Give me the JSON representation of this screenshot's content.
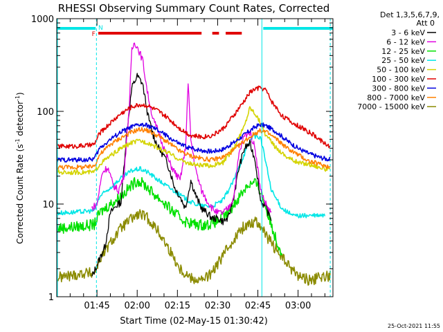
{
  "chart_data": {
    "type": "line",
    "title": "RHESSI Observing Summary Count Rates, Corrected",
    "xlabel": "Start Time (02-May-15 01:30:42)",
    "ylabel_main": "Corrected Count Rate (s",
    "ylabel_sup1": "-1",
    "ylabel_mid": " detector",
    "ylabel_sup2": "-1",
    "ylabel_end": ")",
    "yscale": "log",
    "ylim": [
      1,
      1000
    ],
    "xlim_min": [
      0,
      103
    ],
    "x_ticks": [
      {
        "label": "01:45",
        "min": 15
      },
      {
        "label": "02:00",
        "min": 30
      },
      {
        "label": "02:15",
        "min": 45
      },
      {
        "label": "02:30",
        "min": 60
      },
      {
        "label": "02:45",
        "min": 75
      },
      {
        "label": "03:00",
        "min": 90
      }
    ],
    "y_ticks": [
      {
        "label": "1",
        "v": 1
      },
      {
        "label": "10",
        "v": 10
      },
      {
        "label": "100",
        "v": 100
      },
      {
        "label": "1000",
        "v": 1000
      }
    ],
    "legend_header": [
      "Det 1,3,5,6,7,9,",
      "Att 0"
    ],
    "timestamp": "25-Oct-2021 11:55",
    "flags": {
      "F_label": "F",
      "N_label": "N",
      "night_color": "#00e6e6",
      "flare_color": "#e00000",
      "night_segments": [
        [
          0,
          14.5
        ],
        [
          77,
          103
        ]
      ],
      "flare_segments": [
        [
          15.5,
          54
        ],
        [
          58,
          60.5
        ],
        [
          63,
          69
        ]
      ],
      "vlines_dashed": [
        14.8,
        102
      ],
      "vlines_solid": [
        76.5
      ]
    },
    "series": [
      {
        "name": "3 - 6 keV",
        "color": "#000000",
        "points": [
          [
            13,
            1.6
          ],
          [
            15,
            2.2
          ],
          [
            18,
            3.5
          ],
          [
            20,
            8
          ],
          [
            22,
            9.5
          ],
          [
            24,
            10.5
          ],
          [
            26,
            55
          ],
          [
            28,
            180
          ],
          [
            30,
            240
          ],
          [
            32,
            200
          ],
          [
            34,
            90
          ],
          [
            36,
            55
          ],
          [
            38,
            40
          ],
          [
            40,
            33
          ],
          [
            42,
            24
          ],
          [
            44,
            15
          ],
          [
            46,
            12
          ],
          [
            48,
            9
          ],
          [
            50,
            18
          ],
          [
            52,
            12
          ],
          [
            54,
            9
          ],
          [
            56,
            8
          ],
          [
            58,
            7
          ],
          [
            60,
            7
          ],
          [
            62,
            6.5
          ],
          [
            64,
            7
          ],
          [
            66,
            12
          ],
          [
            68,
            25
          ],
          [
            70,
            40
          ],
          [
            72,
            45
          ],
          [
            74,
            30
          ],
          [
            76,
            11
          ],
          [
            78,
            9
          ],
          [
            80,
            7
          ]
        ]
      },
      {
        "name": "6 - 12 keV",
        "color": "#e000e0",
        "points": [
          [
            13,
            9
          ],
          [
            15,
            10
          ],
          [
            17,
            22
          ],
          [
            19,
            25
          ],
          [
            21,
            16
          ],
          [
            23,
            14
          ],
          [
            25,
            20
          ],
          [
            27,
            110
          ],
          [
            28,
            450
          ],
          [
            29,
            560
          ],
          [
            30,
            500
          ],
          [
            32,
            360
          ],
          [
            34,
            150
          ],
          [
            36,
            80
          ],
          [
            38,
            60
          ],
          [
            40,
            40
          ],
          [
            42,
            28
          ],
          [
            44,
            22
          ],
          [
            46,
            18
          ],
          [
            48,
            40
          ],
          [
            49,
            200
          ],
          [
            50,
            50
          ],
          [
            52,
            22
          ],
          [
            54,
            14
          ],
          [
            56,
            11
          ],
          [
            58,
            9
          ],
          [
            60,
            8
          ],
          [
            62,
            8
          ],
          [
            64,
            9
          ],
          [
            66,
            12
          ],
          [
            68,
            35
          ],
          [
            70,
            55
          ],
          [
            72,
            60
          ],
          [
            74,
            40
          ],
          [
            76,
            14
          ],
          [
            78,
            10
          ],
          [
            80,
            8
          ]
        ]
      },
      {
        "name": "12 - 25 keV",
        "color": "#00e000",
        "points": [
          [
            0,
            5.5
          ],
          [
            5,
            5.6
          ],
          [
            10,
            5.8
          ],
          [
            14,
            6
          ],
          [
            16,
            8
          ],
          [
            19,
            9.5
          ],
          [
            22,
            11
          ],
          [
            25,
            13
          ],
          [
            28,
            16
          ],
          [
            30,
            18
          ],
          [
            33,
            16
          ],
          [
            36,
            13
          ],
          [
            39,
            11
          ],
          [
            42,
            9
          ],
          [
            45,
            7.5
          ],
          [
            48,
            6.5
          ],
          [
            52,
            6
          ],
          [
            56,
            6
          ],
          [
            60,
            6.5
          ],
          [
            64,
            8
          ],
          [
            68,
            12
          ],
          [
            71,
            16
          ],
          [
            74,
            17
          ],
          [
            76,
            14
          ],
          [
            78,
            9
          ],
          [
            80,
            6
          ],
          [
            82,
            4
          ],
          [
            84,
            3
          ]
        ]
      },
      {
        "name": "25 - 50 keV",
        "color": "#00e6e6",
        "points": [
          [
            0,
            8
          ],
          [
            8,
            8.2
          ],
          [
            14,
            8.5
          ],
          [
            16,
            12
          ],
          [
            20,
            15
          ],
          [
            24,
            19
          ],
          [
            28,
            23
          ],
          [
            31,
            24
          ],
          [
            34,
            22
          ],
          [
            38,
            18
          ],
          [
            42,
            15
          ],
          [
            46,
            12.5
          ],
          [
            50,
            10.5
          ],
          [
            54,
            9.5
          ],
          [
            58,
            9.5
          ],
          [
            62,
            11
          ],
          [
            66,
            18
          ],
          [
            70,
            35
          ],
          [
            73,
            55
          ],
          [
            76,
            52
          ],
          [
            78,
            28
          ],
          [
            80,
            14
          ],
          [
            84,
            9
          ],
          [
            88,
            7.5
          ],
          [
            92,
            7.5
          ],
          [
            96,
            7.5
          ],
          [
            100,
            7.5
          ]
        ]
      },
      {
        "name": "50 - 100 keV",
        "color": "#d4d400",
        "points": [
          [
            0,
            22
          ],
          [
            8,
            22
          ],
          [
            14,
            22
          ],
          [
            16,
            27
          ],
          [
            20,
            33
          ],
          [
            24,
            40
          ],
          [
            28,
            46
          ],
          [
            31,
            48
          ],
          [
            34,
            46
          ],
          [
            38,
            40
          ],
          [
            42,
            35
          ],
          [
            46,
            30
          ],
          [
            50,
            27
          ],
          [
            54,
            26
          ],
          [
            58,
            26
          ],
          [
            62,
            28
          ],
          [
            66,
            40
          ],
          [
            70,
            70
          ],
          [
            72,
            110
          ],
          [
            74,
            95
          ],
          [
            76,
            75
          ],
          [
            78,
            55
          ],
          [
            82,
            40
          ],
          [
            86,
            32
          ],
          [
            90,
            28
          ],
          [
            94,
            27
          ],
          [
            98,
            25
          ],
          [
            102,
            23
          ]
        ]
      },
      {
        "name": "100 - 300 keV",
        "color": "#e00000",
        "points": [
          [
            0,
            42
          ],
          [
            6,
            42
          ],
          [
            12,
            43
          ],
          [
            14,
            44
          ],
          [
            16,
            58
          ],
          [
            20,
            75
          ],
          [
            24,
            95
          ],
          [
            28,
            112
          ],
          [
            31,
            118
          ],
          [
            34,
            115
          ],
          [
            38,
            100
          ],
          [
            42,
            82
          ],
          [
            46,
            65
          ],
          [
            50,
            55
          ],
          [
            54,
            53
          ],
          [
            58,
            55
          ],
          [
            62,
            65
          ],
          [
            66,
            90
          ],
          [
            70,
            130
          ],
          [
            72,
            160
          ],
          [
            74,
            175
          ],
          [
            76,
            180
          ],
          [
            78,
            170
          ],
          [
            80,
            130
          ],
          [
            84,
            90
          ],
          [
            88,
            75
          ],
          [
            92,
            65
          ],
          [
            96,
            55
          ],
          [
            100,
            45
          ],
          [
            102,
            42
          ]
        ]
      },
      {
        "name": "300 - 800 keV",
        "color": "#0000e0",
        "points": [
          [
            0,
            30
          ],
          [
            6,
            30
          ],
          [
            12,
            30
          ],
          [
            14,
            31
          ],
          [
            16,
            40
          ],
          [
            20,
            50
          ],
          [
            24,
            60
          ],
          [
            28,
            68
          ],
          [
            31,
            72
          ],
          [
            34,
            70
          ],
          [
            38,
            62
          ],
          [
            42,
            52
          ],
          [
            46,
            44
          ],
          [
            50,
            40
          ],
          [
            54,
            38
          ],
          [
            58,
            37
          ],
          [
            62,
            39
          ],
          [
            66,
            46
          ],
          [
            70,
            56
          ],
          [
            74,
            68
          ],
          [
            76,
            72
          ],
          [
            78,
            70
          ],
          [
            82,
            60
          ],
          [
            86,
            48
          ],
          [
            90,
            40
          ],
          [
            94,
            35
          ],
          [
            98,
            32
          ],
          [
            102,
            30
          ]
        ]
      },
      {
        "name": "800 - 7000 keV",
        "color": "#ff8000",
        "points": [
          [
            0,
            25
          ],
          [
            6,
            25
          ],
          [
            12,
            25
          ],
          [
            14,
            26
          ],
          [
            16,
            34
          ],
          [
            20,
            44
          ],
          [
            24,
            52
          ],
          [
            28,
            60
          ],
          [
            31,
            64
          ],
          [
            34,
            62
          ],
          [
            38,
            54
          ],
          [
            42,
            45
          ],
          [
            46,
            37
          ],
          [
            50,
            33
          ],
          [
            54,
            31
          ],
          [
            58,
            30
          ],
          [
            62,
            32
          ],
          [
            66,
            38
          ],
          [
            70,
            48
          ],
          [
            74,
            58
          ],
          [
            76,
            62
          ],
          [
            78,
            60
          ],
          [
            82,
            50
          ],
          [
            86,
            40
          ],
          [
            90,
            34
          ],
          [
            94,
            29
          ],
          [
            98,
            27
          ],
          [
            102,
            25
          ]
        ]
      },
      {
        "name": "7000 - 15000 keV",
        "color": "#8b8b00",
        "points": [
          [
            0,
            1.6
          ],
          [
            6,
            1.7
          ],
          [
            10,
            1.8
          ],
          [
            14,
            1.8
          ],
          [
            16,
            2.5
          ],
          [
            20,
            3.8
          ],
          [
            24,
            5.5
          ],
          [
            28,
            7
          ],
          [
            31,
            7.8
          ],
          [
            34,
            7
          ],
          [
            38,
            5
          ],
          [
            42,
            3.2
          ],
          [
            46,
            2
          ],
          [
            50,
            1.6
          ],
          [
            54,
            1.5
          ],
          [
            58,
            1.8
          ],
          [
            62,
            2.8
          ],
          [
            66,
            4.2
          ],
          [
            70,
            5.8
          ],
          [
            74,
            6.5
          ],
          [
            76,
            6
          ],
          [
            78,
            4.5
          ],
          [
            82,
            3.2
          ],
          [
            86,
            2.2
          ],
          [
            90,
            1.7
          ],
          [
            94,
            1.5
          ],
          [
            98,
            1.6
          ],
          [
            102,
            1.7
          ]
        ]
      }
    ]
  }
}
